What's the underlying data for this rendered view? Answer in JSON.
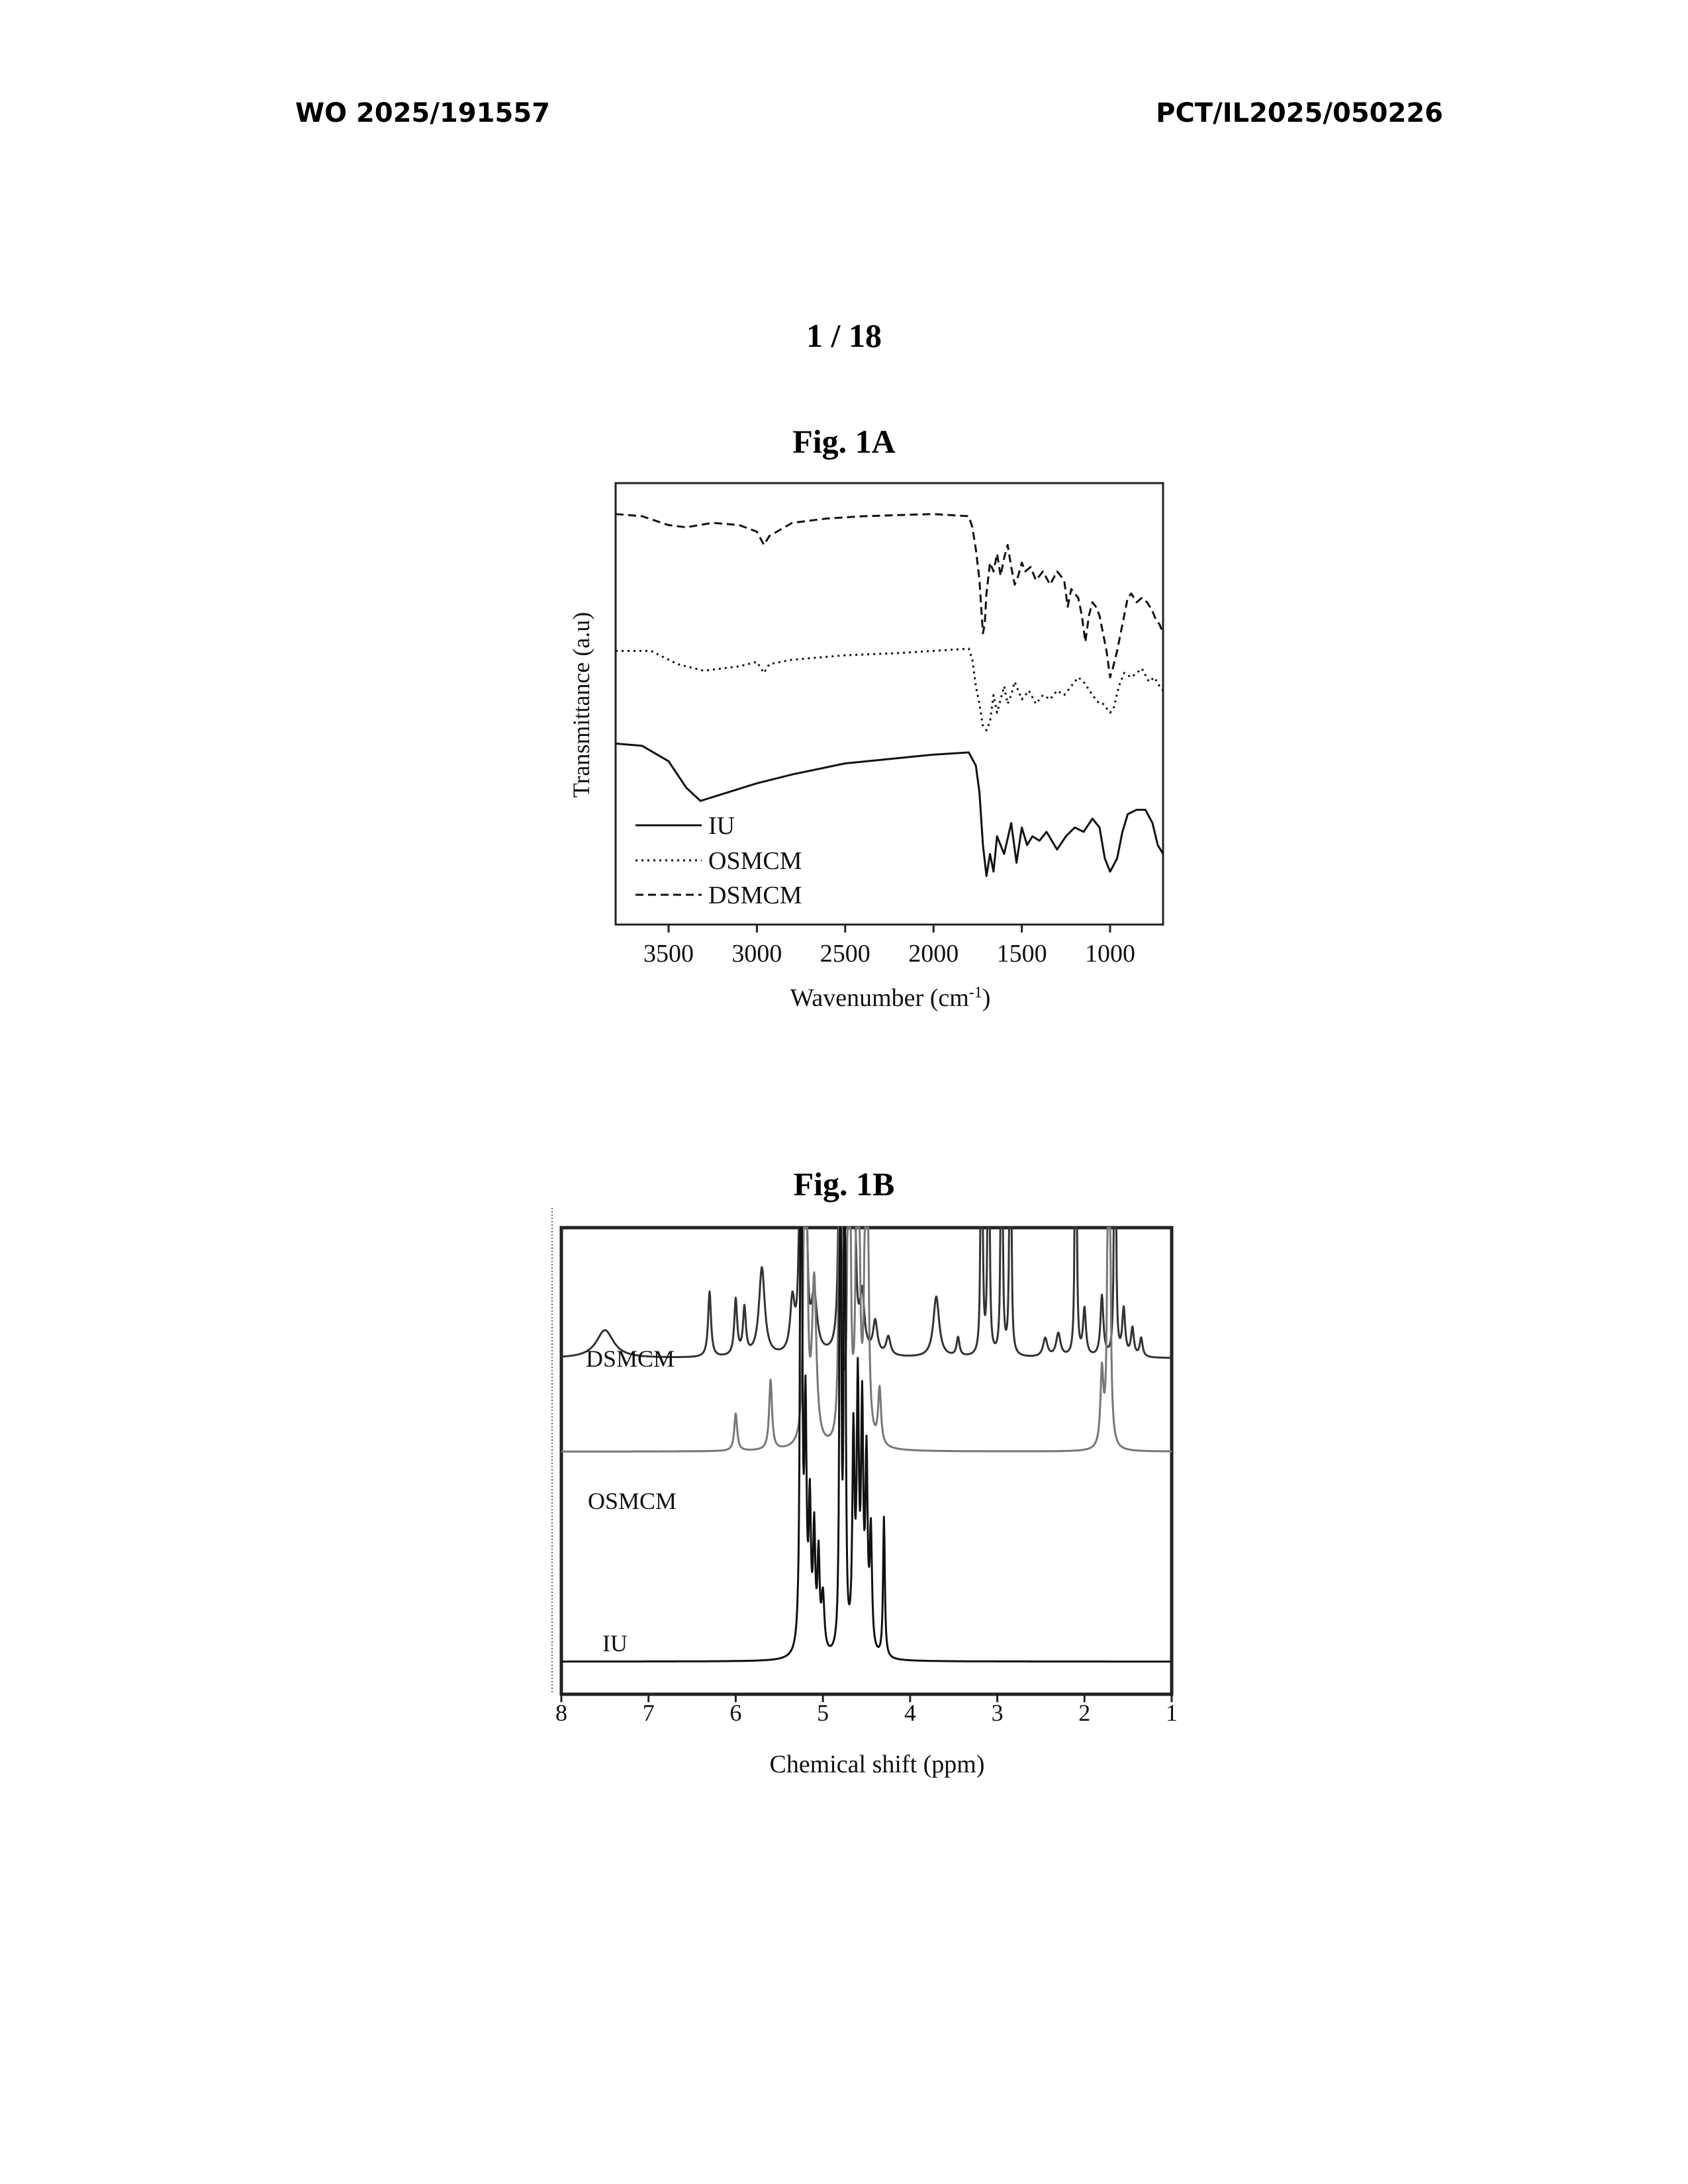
{
  "header": {
    "left": "WO 2025/191557",
    "right": "PCT/IL2025/050226"
  },
  "page_number": "1 / 18",
  "figures": [
    {
      "caption": "Fig. 1A"
    },
    {
      "caption": "Fig. 1B"
    }
  ],
  "chart_data": [
    {
      "type": "line",
      "title": "Fig. 1A",
      "xlabel": "Wavenumber (cm",
      "xlabel_sup": "-1",
      "xlabel_end": ")",
      "ylabel": "Transmittance (a.u)",
      "x_reversed": true,
      "xlim": [
        3800,
        700
      ],
      "ylim": [
        0,
        100
      ],
      "xticks": [
        3500,
        3000,
        2500,
        2000,
        1500,
        1000
      ],
      "y_ticks_labeled": false,
      "legend_position": "bottom-left",
      "series": [
        {
          "name": "IU",
          "dash": "solid",
          "points": [
            [
              3800,
              41
            ],
            [
              3650,
              40.5
            ],
            [
              3500,
              37
            ],
            [
              3400,
              31
            ],
            [
              3320,
              28
            ],
            [
              3200,
              29.5
            ],
            [
              3000,
              32
            ],
            [
              2800,
              34
            ],
            [
              2500,
              36.5
            ],
            [
              2000,
              38.5
            ],
            [
              1800,
              39
            ],
            [
              1760,
              36
            ],
            [
              1740,
              30
            ],
            [
              1720,
              18
            ],
            [
              1700,
              11
            ],
            [
              1680,
              16
            ],
            [
              1660,
              12
            ],
            [
              1640,
              20
            ],
            [
              1600,
              16
            ],
            [
              1560,
              23
            ],
            [
              1530,
              14
            ],
            [
              1500,
              22
            ],
            [
              1470,
              18
            ],
            [
              1440,
              20
            ],
            [
              1400,
              19
            ],
            [
              1360,
              21
            ],
            [
              1300,
              17
            ],
            [
              1250,
              20
            ],
            [
              1200,
              22
            ],
            [
              1150,
              21
            ],
            [
              1100,
              24
            ],
            [
              1060,
              22
            ],
            [
              1030,
              15
            ],
            [
              1000,
              12
            ],
            [
              960,
              15
            ],
            [
              930,
              21
            ],
            [
              900,
              25
            ],
            [
              850,
              26
            ],
            [
              800,
              26
            ],
            [
              760,
              23
            ],
            [
              730,
              18
            ],
            [
              700,
              16
            ]
          ]
        },
        {
          "name": "OSMCM",
          "dash": "dotted",
          "points": [
            [
              3800,
              62
            ],
            [
              3600,
              62
            ],
            [
              3450,
              59
            ],
            [
              3300,
              57.5
            ],
            [
              3100,
              58.5
            ],
            [
              3000,
              59.5
            ],
            [
              2960,
              57
            ],
            [
              2930,
              59
            ],
            [
              2800,
              60
            ],
            [
              2500,
              61
            ],
            [
              2200,
              61.5
            ],
            [
              1800,
              62.5
            ],
            [
              1780,
              60
            ],
            [
              1760,
              54
            ],
            [
              1740,
              50
            ],
            [
              1720,
              45
            ],
            [
              1700,
              44
            ],
            [
              1680,
              46
            ],
            [
              1660,
              52
            ],
            [
              1640,
              48
            ],
            [
              1620,
              51
            ],
            [
              1600,
              54
            ],
            [
              1580,
              50
            ],
            [
              1560,
              52
            ],
            [
              1540,
              55
            ],
            [
              1500,
              51
            ],
            [
              1460,
              53
            ],
            [
              1420,
              50
            ],
            [
              1380,
              52
            ],
            [
              1340,
              51
            ],
            [
              1300,
              53
            ],
            [
              1260,
              52
            ],
            [
              1220,
              54
            ],
            [
              1180,
              56
            ],
            [
              1150,
              55
            ],
            [
              1100,
              52
            ],
            [
              1060,
              50
            ],
            [
              1040,
              50
            ],
            [
              1000,
              48
            ],
            [
              980,
              49
            ],
            [
              950,
              54
            ],
            [
              920,
              57
            ],
            [
              880,
              56
            ],
            [
              850,
              57
            ],
            [
              820,
              58
            ],
            [
              780,
              55
            ],
            [
              750,
              56
            ],
            [
              720,
              54
            ],
            [
              700,
              53
            ]
          ]
        },
        {
          "name": "DSMCM",
          "dash": "dashed",
          "points": [
            [
              3800,
              93
            ],
            [
              3650,
              92.5
            ],
            [
              3500,
              90.5
            ],
            [
              3400,
              90
            ],
            [
              3250,
              91
            ],
            [
              3100,
              90.5
            ],
            [
              3000,
              89
            ],
            [
              2960,
              86
            ],
            [
              2930,
              88
            ],
            [
              2800,
              91
            ],
            [
              2600,
              92
            ],
            [
              2400,
              92.5
            ],
            [
              2000,
              93
            ],
            [
              1800,
              92.5
            ],
            [
              1780,
              90
            ],
            [
              1760,
              85
            ],
            [
              1740,
              78
            ],
            [
              1730,
              72
            ],
            [
              1720,
              66
            ],
            [
              1710,
              68
            ],
            [
              1700,
              75
            ],
            [
              1680,
              82
            ],
            [
              1660,
              80
            ],
            [
              1640,
              84
            ],
            [
              1620,
              79
            ],
            [
              1600,
              83
            ],
            [
              1580,
              86
            ],
            [
              1560,
              81
            ],
            [
              1540,
              77
            ],
            [
              1520,
              79
            ],
            [
              1500,
              82
            ],
            [
              1480,
              80
            ],
            [
              1450,
              81
            ],
            [
              1420,
              78
            ],
            [
              1380,
              80
            ],
            [
              1340,
              77
            ],
            [
              1300,
              80
            ],
            [
              1260,
              78
            ],
            [
              1240,
              72
            ],
            [
              1220,
              76
            ],
            [
              1200,
              75
            ],
            [
              1180,
              74
            ],
            [
              1160,
              70
            ],
            [
              1140,
              64
            ],
            [
              1120,
              70
            ],
            [
              1100,
              73
            ],
            [
              1080,
              72
            ],
            [
              1060,
              70
            ],
            [
              1040,
              66
            ],
            [
              1020,
              62
            ],
            [
              1000,
              56
            ],
            [
              985,
              58
            ],
            [
              960,
              62
            ],
            [
              930,
              68
            ],
            [
              900,
              74
            ],
            [
              880,
              75
            ],
            [
              850,
              73
            ],
            [
              820,
              74
            ],
            [
              790,
              73
            ],
            [
              760,
              71
            ],
            [
              740,
              69
            ],
            [
              720,
              68
            ],
            [
              700,
              66
            ]
          ]
        }
      ]
    },
    {
      "type": "line",
      "title": "Fig. 1B",
      "xlabel": "Chemical shift (ppm)",
      "x_reversed": true,
      "xlim": [
        8,
        1
      ],
      "xticks": [
        8,
        7,
        6,
        5,
        4,
        3,
        2,
        1
      ],
      "y_ticks_labeled": false,
      "series_labels": [
        "DSMCM",
        "OSMCM",
        "IU"
      ],
      "series": [
        {
          "name": "DSMCM",
          "baseline": 72,
          "peaks": [
            [
              7.5,
              6,
              0.12
            ],
            [
              6.3,
              14,
              0.02
            ],
            [
              6.0,
              12,
              0.02
            ],
            [
              5.9,
              10,
              0.02
            ],
            [
              5.7,
              19,
              0.04
            ],
            [
              5.35,
              11,
              0.03
            ],
            [
              5.25,
              200,
              0.01
            ],
            [
              5.2,
              120,
              0.01
            ],
            [
              5.1,
              12,
              0.04
            ],
            [
              4.8,
              200,
              0.01
            ],
            [
              4.72,
              200,
              0.01
            ],
            [
              4.65,
              200,
              0.01
            ],
            [
              4.55,
              12,
              0.03
            ],
            [
              4.4,
              7,
              0.03
            ],
            [
              4.25,
              4,
              0.03
            ],
            [
              3.7,
              13,
              0.04
            ],
            [
              3.45,
              4,
              0.02
            ],
            [
              3.18,
              200,
              0.006
            ],
            [
              3.1,
              200,
              0.006
            ],
            [
              2.95,
              200,
              0.006
            ],
            [
              2.85,
              200,
              0.006
            ],
            [
              2.45,
              4,
              0.03
            ],
            [
              2.3,
              5,
              0.03
            ],
            [
              2.1,
              200,
              0.006
            ],
            [
              2.0,
              10,
              0.02
            ],
            [
              1.8,
              13,
              0.02
            ],
            [
              1.65,
              200,
              0.006
            ],
            [
              1.55,
              10,
              0.02
            ],
            [
              1.45,
              6,
              0.02
            ],
            [
              1.35,
              4,
              0.02
            ]
          ]
        },
        {
          "name": "OSMCM",
          "baseline": 52,
          "peaks": [
            [
              6.0,
              8,
              0.02
            ],
            [
              5.6,
              15,
              0.02
            ],
            [
              5.2,
              200,
              0.012
            ],
            [
              5.1,
              35,
              0.03
            ],
            [
              4.8,
              200,
              0.01
            ],
            [
              4.7,
              200,
              0.01
            ],
            [
              4.6,
              200,
              0.012
            ],
            [
              4.5,
              200,
              0.012
            ],
            [
              4.35,
              12,
              0.02
            ],
            [
              1.8,
              16,
              0.02
            ],
            [
              1.72,
              200,
              0.01
            ]
          ]
        },
        {
          "name": "IU",
          "baseline": 7,
          "peaks": [
            [
              5.25,
              200,
              0.01
            ],
            [
              5.2,
              50,
              0.015
            ],
            [
              5.15,
              30,
              0.015
            ],
            [
              5.1,
              25,
              0.015
            ],
            [
              5.05,
              20,
              0.015
            ],
            [
              5.0,
              12,
              0.02
            ],
            [
              4.8,
              200,
              0.008
            ],
            [
              4.75,
              200,
              0.008
            ],
            [
              4.65,
              45,
              0.015
            ],
            [
              4.6,
              55,
              0.015
            ],
            [
              4.55,
              50,
              0.015
            ],
            [
              4.5,
              40,
              0.015
            ],
            [
              4.45,
              25,
              0.015
            ],
            [
              4.3,
              30,
              0.012
            ]
          ]
        }
      ]
    }
  ]
}
